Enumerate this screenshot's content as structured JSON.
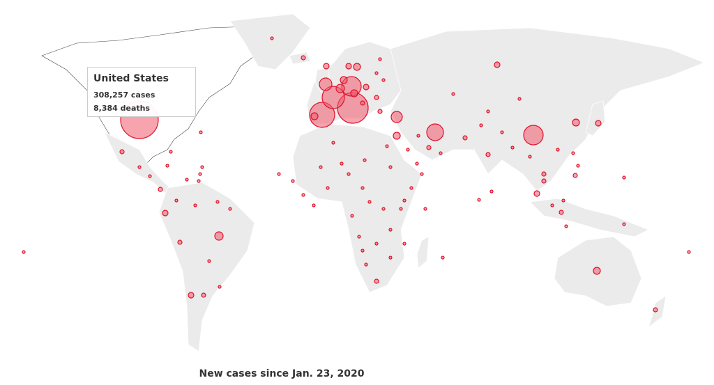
{
  "tooltip": {
    "country": "United States",
    "cases": "308,257 cases",
    "deaths": "8,384 deaths"
  },
  "caption": "New cases since Jan. 23, 2020",
  "colors": {
    "land": "#ebebeb",
    "bubble_fill": "#f05a6e",
    "bubble_stroke": "#e0102a",
    "highlight_land": "#ffffff"
  }
}
